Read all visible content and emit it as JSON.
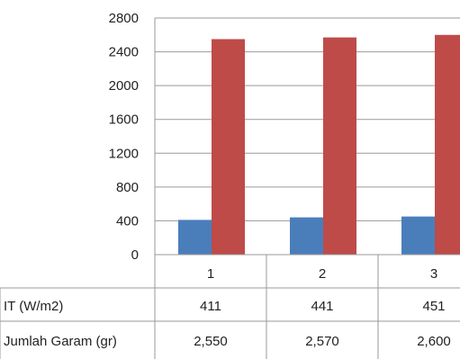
{
  "chart_data": {
    "type": "bar",
    "categories": [
      "1",
      "2",
      "3"
    ],
    "series": [
      {
        "name": "IT (W/m2)",
        "values": [
          411,
          441,
          451
        ],
        "labels": [
          "411",
          "441",
          "451"
        ],
        "color": "#4a7ebb"
      },
      {
        "name": "Jumlah Garam (gr)",
        "values": [
          2550,
          2570,
          2600
        ],
        "labels": [
          "2,550",
          "2,570",
          "2,600"
        ],
        "color": "#be4b48"
      }
    ],
    "y_ticks": [
      "0",
      "400",
      "800",
      "1200",
      "1600",
      "2000",
      "2400",
      "2800"
    ],
    "ylim": [
      0,
      2800
    ],
    "grid": true,
    "legend": "data-table-below"
  }
}
